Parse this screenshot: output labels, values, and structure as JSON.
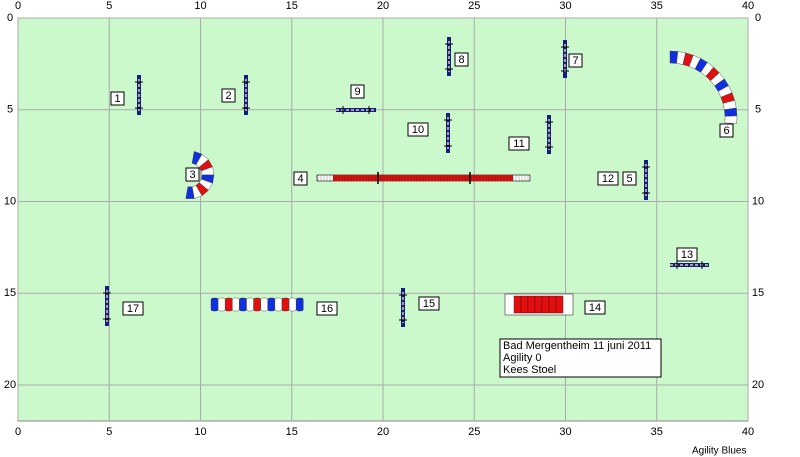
{
  "axes": {
    "xticks": [
      0,
      5,
      10,
      15,
      20,
      25,
      30,
      35,
      40
    ],
    "yticks": [
      0,
      5,
      10,
      15,
      20
    ]
  },
  "obstacles": [
    {
      "label": "1"
    },
    {
      "label": "2"
    },
    {
      "label": "3"
    },
    {
      "label": "4"
    },
    {
      "label": "5"
    },
    {
      "label": "6"
    },
    {
      "label": "7"
    },
    {
      "label": "8"
    },
    {
      "label": "9"
    },
    {
      "label": "10"
    },
    {
      "label": "11"
    },
    {
      "label": "12"
    },
    {
      "label": "13"
    },
    {
      "label": "14"
    },
    {
      "label": "15"
    },
    {
      "label": "16"
    },
    {
      "label": "17"
    }
  ],
  "info_box": {
    "lines": [
      "Bad Mergentheim 11 juni 2011",
      "Agility 0",
      "Kees Stoel"
    ]
  },
  "footer": "Agility Blues"
}
